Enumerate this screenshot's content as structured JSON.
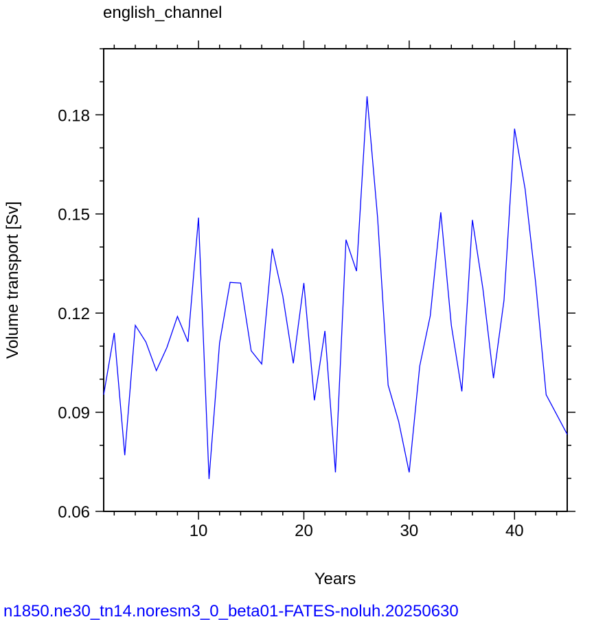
{
  "chart_data": {
    "type": "line",
    "title": "english_channel",
    "xlabel": "Years",
    "ylabel": "Volume transport [Sv]",
    "caption": "n1850.ne30_tn14.noresm3_0_beta01-FATES-noluh.20250630",
    "x": [
      1,
      2,
      3,
      4,
      5,
      6,
      7,
      8,
      9,
      10,
      11,
      12,
      13,
      14,
      15,
      16,
      17,
      18,
      19,
      20,
      21,
      22,
      23,
      24,
      25,
      26,
      27,
      28,
      29,
      30,
      31,
      32,
      33,
      34,
      35,
      36,
      37,
      38,
      39,
      40,
      41,
      42,
      43,
      44,
      45
    ],
    "series": [
      {
        "name": "english_channel",
        "color": "#0000ff",
        "values": [
          0.0953,
          0.114,
          0.077,
          0.1163,
          0.1113,
          0.1026,
          0.1096,
          0.119,
          0.1113,
          0.1489,
          0.0698,
          0.111,
          0.1293,
          0.1291,
          0.1086,
          0.1046,
          0.1395,
          0.1252,
          0.1048,
          0.1291,
          0.0936,
          0.1146,
          0.0718,
          0.1422,
          0.1327,
          0.1856,
          0.1489,
          0.0982,
          0.0872,
          0.0718,
          0.104,
          0.1192,
          0.1505,
          0.1163,
          0.0963,
          0.1482,
          0.1273,
          0.1003,
          0.1239,
          0.1758,
          0.1576,
          0.1293,
          0.0953,
          0.0893,
          0.0833
        ]
      }
    ],
    "xlim": [
      1,
      45
    ],
    "ylim": [
      0.06,
      0.2
    ],
    "xticks": [
      10,
      20,
      30,
      40
    ],
    "yticks": [
      {
        "value": 0.06,
        "label": "0.06"
      },
      {
        "value": 0.09,
        "label": "0.09"
      },
      {
        "value": 0.12,
        "label": "0.12"
      },
      {
        "value": 0.15,
        "label": "0.15"
      },
      {
        "value": 0.18,
        "label": "0.18"
      }
    ],
    "xminorticks": [
      2,
      4,
      6,
      8,
      12,
      14,
      16,
      18,
      22,
      24,
      26,
      28,
      32,
      34,
      36,
      38,
      42,
      44
    ],
    "yminorticks": [
      0.07,
      0.08,
      0.1,
      0.11,
      0.13,
      0.14,
      0.16,
      0.17,
      0.19,
      0.2
    ],
    "grid": false
  }
}
